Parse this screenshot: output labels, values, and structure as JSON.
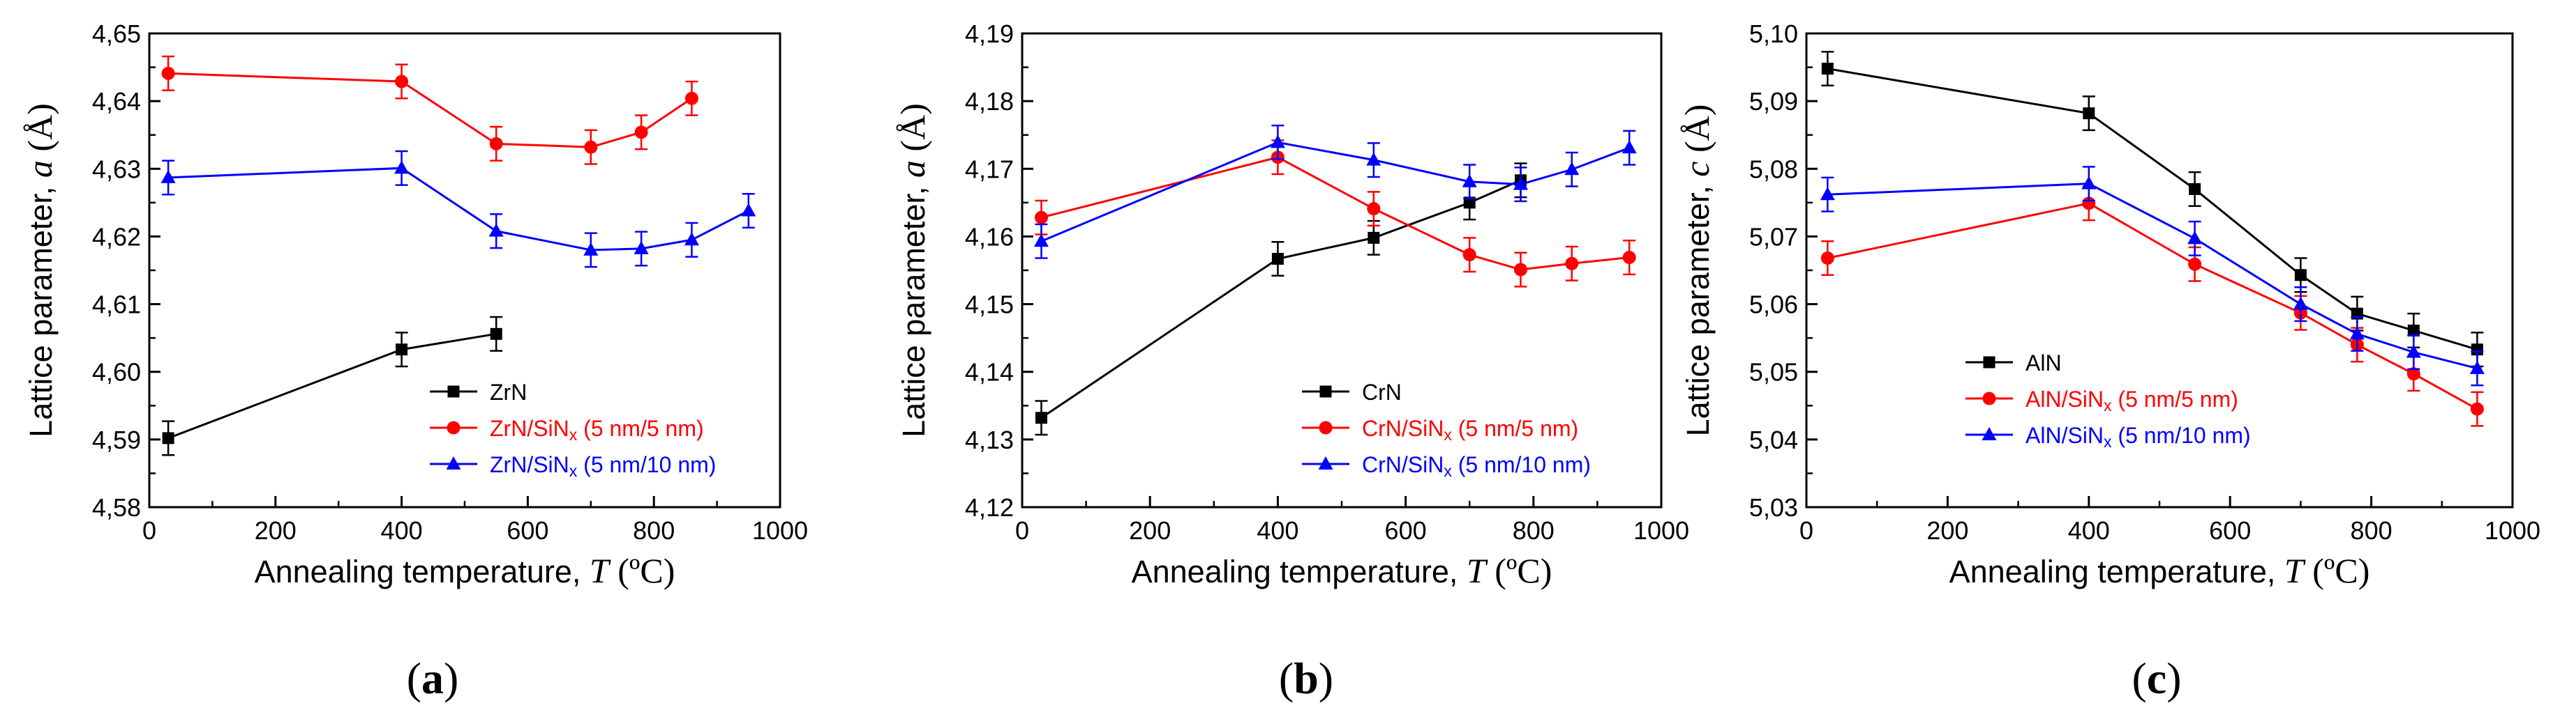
{
  "chart_data": [
    {
      "panel_label": "a",
      "type": "line",
      "xlabel": {
        "text": "Annealing temperature, ",
        "var": "T",
        "unit": " (ºC)"
      },
      "ylabel": {
        "text": "Lattice parameter, ",
        "var": "a",
        "unit": " (Å)"
      },
      "xlim": [
        0,
        1000
      ],
      "ylim": [
        4.58,
        4.65
      ],
      "xticks": [
        0,
        200,
        400,
        600,
        800,
        1000
      ],
      "xtick_labels": [
        "0",
        "200",
        "400",
        "600",
        "800",
        "1000"
      ],
      "yticks": [
        4.58,
        4.59,
        4.6,
        4.61,
        4.62,
        4.63,
        4.64,
        4.65
      ],
      "ytick_labels": [
        "4,58",
        "4,59",
        "4,60",
        "4,61",
        "4,62",
        "4,63",
        "4,64",
        "4,65"
      ],
      "legend_position": "lower-right",
      "series": [
        {
          "name": "ZrN",
          "sub": "",
          "sub_rest": "",
          "color": "#000000",
          "marker": "square",
          "x": [
            30,
            400,
            550
          ],
          "y": [
            4.5902,
            4.6033,
            4.6056
          ],
          "err": [
            0.0025,
            0.0025,
            0.0025
          ]
        },
        {
          "name": "ZrN/SiN",
          "sub": "x",
          "sub_rest": " (5 nm/5 nm)",
          "color": "#ff0000",
          "marker": "circle",
          "x": [
            30,
            400,
            550,
            700,
            780,
            860
          ],
          "y": [
            4.6441,
            4.6429,
            4.6337,
            4.6332,
            4.6354,
            4.6404
          ],
          "err": [
            0.0025,
            0.0025,
            0.0025,
            0.0025,
            0.0025,
            0.0025
          ]
        },
        {
          "name": "ZrN/SiN",
          "sub": "x",
          "sub_rest": " (5 nm/10 nm)",
          "color": "#0000ff",
          "marker": "triangle",
          "x": [
            30,
            400,
            550,
            700,
            780,
            860,
            950
          ],
          "y": [
            4.6287,
            4.6301,
            4.6208,
            4.618,
            4.6182,
            4.6195,
            4.6238
          ],
          "err": [
            0.0025,
            0.0025,
            0.0025,
            0.0025,
            0.0025,
            0.0025,
            0.0025
          ]
        }
      ]
    },
    {
      "panel_label": "b",
      "type": "line",
      "xlabel": {
        "text": "Annealing temperature, ",
        "var": "T",
        "unit": " (ºC)"
      },
      "ylabel": {
        "text": "Lattice parameter, ",
        "var": "a",
        "unit": " (Å)"
      },
      "xlim": [
        0,
        1000
      ],
      "ylim": [
        4.12,
        4.19
      ],
      "xticks": [
        0,
        200,
        400,
        600,
        800,
        1000
      ],
      "xtick_labels": [
        "0",
        "200",
        "400",
        "600",
        "800",
        "1000"
      ],
      "yticks": [
        4.12,
        4.13,
        4.14,
        4.15,
        4.16,
        4.17,
        4.18,
        4.19
      ],
      "ytick_labels": [
        "4,12",
        "4,13",
        "4,14",
        "4,15",
        "4,16",
        "4,17",
        "4,18",
        "4,19"
      ],
      "legend_position": "lower-right",
      "series": [
        {
          "name": "CrN",
          "sub": "",
          "sub_rest": "",
          "color": "#000000",
          "marker": "square",
          "x": [
            30,
            400,
            550,
            700,
            780
          ],
          "y": [
            4.1332,
            4.1567,
            4.1598,
            4.165,
            4.1683
          ],
          "err": [
            0.0025,
            0.0025,
            0.0025,
            0.0025,
            0.0025
          ]
        },
        {
          "name": "CrN/SiN",
          "sub": "x",
          "sub_rest": " (5 nm/5 nm)",
          "color": "#ff0000",
          "marker": "circle",
          "x": [
            30,
            400,
            550,
            700,
            780,
            860,
            950
          ],
          "y": [
            4.1628,
            4.1717,
            4.1641,
            4.1573,
            4.1551,
            4.156,
            4.1569
          ],
          "err": [
            0.0025,
            0.0025,
            0.0025,
            0.0025,
            0.0025,
            0.0025,
            0.0025
          ]
        },
        {
          "name": "CrN/SiN",
          "sub": "x",
          "sub_rest": " (5 nm/10 nm)",
          "color": "#0000ff",
          "marker": "triangle",
          "x": [
            30,
            400,
            550,
            700,
            780,
            860,
            950
          ],
          "y": [
            4.1593,
            4.1739,
            4.1713,
            4.1681,
            4.1677,
            4.1699,
            4.1731
          ],
          "err": [
            0.0025,
            0.0025,
            0.0025,
            0.0025,
            0.0025,
            0.0025,
            0.0025
          ]
        }
      ]
    },
    {
      "panel_label": "c",
      "type": "line",
      "xlabel": {
        "text": "Annealing temperature, ",
        "var": "T",
        "unit": " (ºC)"
      },
      "ylabel": {
        "text": "Lattice parameter, ",
        "var": "c",
        "unit": " (Å)"
      },
      "xlim": [
        0,
        1000
      ],
      "ylim": [
        5.03,
        5.1
      ],
      "xticks": [
        0,
        200,
        400,
        600,
        800,
        1000
      ],
      "xtick_labels": [
        "0",
        "200",
        "400",
        "600",
        "800",
        "1000"
      ],
      "yticks": [
        5.03,
        5.04,
        5.05,
        5.06,
        5.07,
        5.08,
        5.09,
        5.1
      ],
      "ytick_labels": [
        "5,03",
        "5,04",
        "5,05",
        "5,06",
        "5,07",
        "5,08",
        "5,09",
        "5,10"
      ],
      "legend_position": "lower-left",
      "series": [
        {
          "name": "AlN",
          "sub": "",
          "sub_rest": "",
          "color": "#000000",
          "marker": "square",
          "x": [
            30,
            400,
            550,
            700,
            780,
            860,
            950
          ],
          "y": [
            5.0948,
            5.0882,
            5.077,
            5.0643,
            5.0586,
            5.0561,
            5.0533
          ],
          "err": [
            0.0025,
            0.0025,
            0.0025,
            0.0025,
            0.0025,
            0.0025,
            0.0025
          ]
        },
        {
          "name": "AlN/SiN",
          "sub": "x",
          "sub_rest": " (5 nm/5 nm)",
          "color": "#ff0000",
          "marker": "circle",
          "x": [
            30,
            400,
            550,
            700,
            780,
            860,
            950
          ],
          "y": [
            5.0668,
            5.0749,
            5.0659,
            5.0587,
            5.054,
            5.0497,
            5.0445
          ],
          "err": [
            0.0025,
            0.0025,
            0.0025,
            0.0025,
            0.0025,
            0.0025,
            0.0025
          ]
        },
        {
          "name": "AlN/SiN",
          "sub": "x",
          "sub_rest": " (5 nm/10 nm)",
          "color": "#0000ff",
          "marker": "triangle",
          "x": [
            30,
            400,
            550,
            700,
            780,
            860,
            950
          ],
          "y": [
            5.0762,
            5.0778,
            5.0697,
            5.06,
            5.0556,
            5.0529,
            5.0505
          ],
          "err": [
            0.0025,
            0.0025,
            0.0025,
            0.0025,
            0.0025,
            0.0025,
            0.0025
          ]
        }
      ]
    }
  ]
}
